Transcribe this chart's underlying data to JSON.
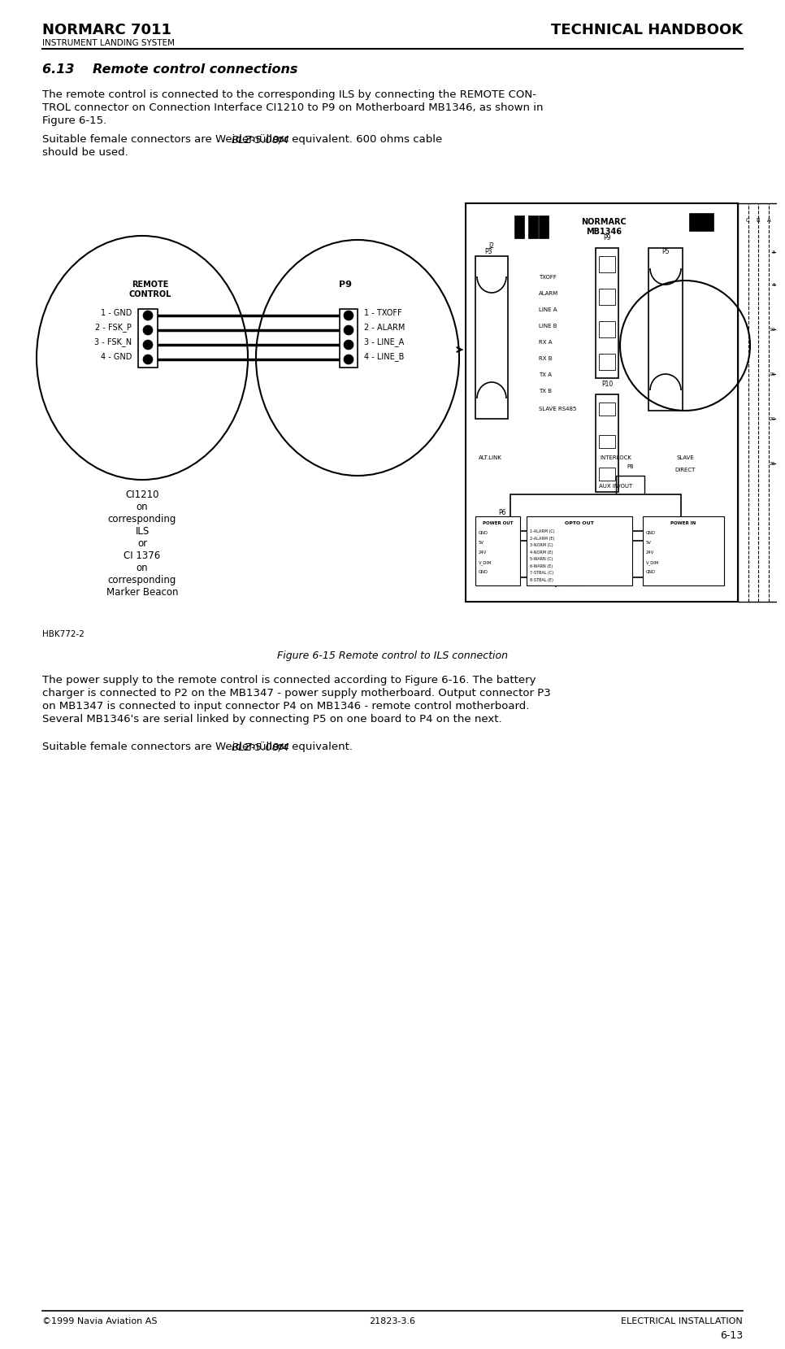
{
  "page_title_left": "NORMARC 7011",
  "page_title_right": "TECHNICAL HANDBOOK",
  "page_subtitle": "INSTRUMENT LANDING SYSTEM",
  "section_title": "6.13    Remote control connections",
  "para1_line1": "The remote control is connected to the corresponding ILS by connecting the REMOTE CON-",
  "para1_line2": "TROL connector on Connection Interface CI1210 to P9 on Motherboard MB1346, as shown in",
  "para1_line3": "Figure 6-15.",
  "para2_line1": "Suitable female connectors are Weidemüller BLZ-5.08/4 or equivalent. 600 ohms cable",
  "para2_line1a": "Suitable female connectors are Weidemüller ",
  "para2_line1b": "BLZ-5.08/4",
  "para2_line1c": " or equivalent. 600 ohms cable",
  "para2_line2": "should be used.",
  "figure_caption": "Figure 6-15 Remote control to ILS connection",
  "para3_line1": "The power supply to the remote control is connected according to Figure 6-16. The battery",
  "para3_line2": "charger is connected to P2 on the MB1347 - power supply motherboard. Output connector P3",
  "para3_line3": "on MB1347 is connected to input connector P4 on MB1346 - remote control motherboard.",
  "para3_line4": "Several MB1346's are serial linked by connecting P5 on one board to P4 on the next.",
  "para4_line1": "Suitable female connectors are Weidemüller BLZ-5.08/4 or equivalent.",
  "para4_line1a": "Suitable female connectors are Weidemüller ",
  "para4_line1b": "BLZ-5.08/4",
  "para4_line1c": " or equivalent.",
  "footer_left": "©1999 Navia Aviation AS",
  "footer_center": "21823-3.6",
  "footer_right": "ELECTRICAL INSTALLATION",
  "page_number": "6-13",
  "bg_color": "#ffffff",
  "text_color": "#000000"
}
